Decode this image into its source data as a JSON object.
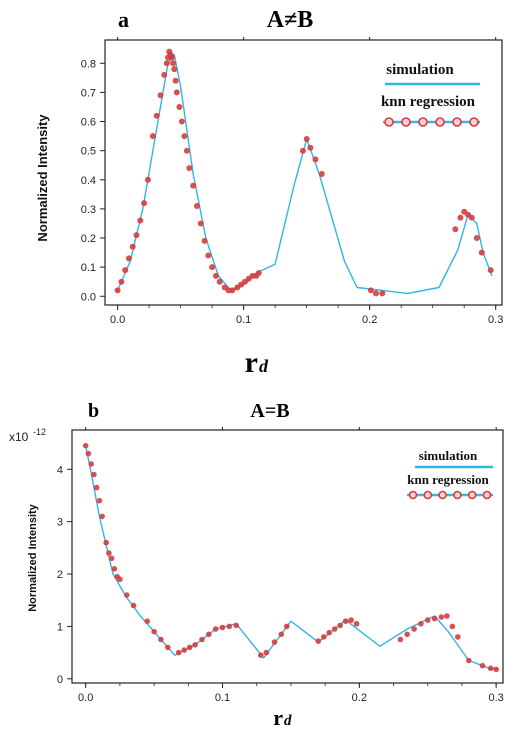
{
  "colors": {
    "simulation": "#33b5e5",
    "knn": "#d63c3c",
    "axis": "#222222"
  },
  "chart_data": [
    {
      "type": "line",
      "panel_label": "a",
      "title": "A≠B",
      "xlabel_main": "r",
      "xlabel_sub": "d",
      "ylabel": "Normalized Intensity",
      "y_multiplier": "",
      "xlim": [
        -0.01,
        0.305
      ],
      "ylim": [
        -0.03,
        0.88
      ],
      "xticks": [
        0.0,
        0.1,
        0.2,
        0.3
      ],
      "xtick_labels": [
        "0.0",
        "0.1",
        "0.2",
        "0.3"
      ],
      "yticks": [
        0.0,
        0.1,
        0.2,
        0.3,
        0.4,
        0.5,
        0.6,
        0.7,
        0.8
      ],
      "ytick_labels": [
        "0.0",
        "0.1",
        "0.2",
        "0.3",
        "0.4",
        "0.5",
        "0.6",
        "0.7",
        "0.8"
      ],
      "legend": {
        "position": "top-right",
        "entries": [
          "simulation",
          "knn regression"
        ]
      },
      "grid": false,
      "series": [
        {
          "name": "simulation",
          "style": "line",
          "x": [
            0.0,
            0.01,
            0.02,
            0.03,
            0.04,
            0.045,
            0.05,
            0.06,
            0.07,
            0.08,
            0.09,
            0.1,
            0.11,
            0.125,
            0.14,
            0.15,
            0.16,
            0.18,
            0.19,
            0.21,
            0.23,
            0.255,
            0.27,
            0.278,
            0.285,
            0.29,
            0.297
          ],
          "y": [
            0.02,
            0.12,
            0.3,
            0.55,
            0.8,
            0.83,
            0.72,
            0.42,
            0.2,
            0.07,
            0.02,
            0.04,
            0.08,
            0.11,
            0.38,
            0.54,
            0.42,
            0.12,
            0.03,
            0.02,
            0.01,
            0.03,
            0.16,
            0.28,
            0.25,
            0.15,
            0.07
          ]
        },
        {
          "name": "knn regression",
          "style": "markers",
          "x": [
            0.0,
            0.003,
            0.006,
            0.009,
            0.012,
            0.015,
            0.018,
            0.021,
            0.024,
            0.028,
            0.031,
            0.034,
            0.037,
            0.039,
            0.04,
            0.041,
            0.042,
            0.043,
            0.044,
            0.045,
            0.046,
            0.047,
            0.049,
            0.051,
            0.053,
            0.055,
            0.057,
            0.06,
            0.063,
            0.066,
            0.069,
            0.072,
            0.075,
            0.078,
            0.081,
            0.085,
            0.088,
            0.091,
            0.095,
            0.098,
            0.101,
            0.104,
            0.107,
            0.11,
            0.112,
            0.147,
            0.15,
            0.153,
            0.157,
            0.162,
            0.201,
            0.205,
            0.21,
            0.268,
            0.272,
            0.275,
            0.278,
            0.281,
            0.285,
            0.289,
            0.296
          ],
          "y": [
            0.02,
            0.05,
            0.09,
            0.13,
            0.17,
            0.21,
            0.26,
            0.32,
            0.4,
            0.55,
            0.62,
            0.69,
            0.76,
            0.8,
            0.82,
            0.84,
            0.83,
            0.82,
            0.8,
            0.78,
            0.74,
            0.7,
            0.65,
            0.6,
            0.55,
            0.5,
            0.44,
            0.38,
            0.31,
            0.25,
            0.19,
            0.14,
            0.1,
            0.07,
            0.05,
            0.03,
            0.02,
            0.02,
            0.03,
            0.04,
            0.05,
            0.06,
            0.07,
            0.07,
            0.08,
            0.5,
            0.54,
            0.51,
            0.47,
            0.42,
            0.02,
            0.01,
            0.01,
            0.23,
            0.27,
            0.29,
            0.28,
            0.27,
            0.2,
            0.15,
            0.09
          ]
        }
      ]
    },
    {
      "type": "line",
      "panel_label": "b",
      "title": "A=B",
      "xlabel_main": "r",
      "xlabel_sub": "d",
      "ylabel": "Normalized Intensity",
      "y_multiplier": "x10",
      "y_multiplier_exp": "-12",
      "xlim": [
        -0.01,
        0.305
      ],
      "ylim": [
        -0.08,
        4.75
      ],
      "xticks": [
        0.0,
        0.1,
        0.2,
        0.3
      ],
      "xtick_labels": [
        "0.0",
        "0.1",
        "0.2",
        "0.3"
      ],
      "yticks": [
        0,
        1,
        2,
        3,
        4
      ],
      "ytick_labels": [
        "0",
        "1",
        "2",
        "3",
        "4"
      ],
      "legend": {
        "position": "top-right",
        "entries": [
          "simulation",
          "knn regression"
        ]
      },
      "grid": false,
      "series": [
        {
          "name": "simulation",
          "style": "line",
          "x": [
            0.0,
            0.005,
            0.01,
            0.02,
            0.03,
            0.04,
            0.05,
            0.065,
            0.08,
            0.095,
            0.11,
            0.13,
            0.15,
            0.17,
            0.19,
            0.215,
            0.235,
            0.255,
            0.265,
            0.28,
            0.295,
            0.3
          ],
          "y": [
            4.45,
            3.8,
            3.1,
            2.0,
            1.55,
            1.2,
            0.9,
            0.45,
            0.65,
            0.95,
            1.05,
            0.4,
            1.1,
            0.7,
            1.12,
            0.62,
            0.95,
            1.2,
            0.9,
            0.35,
            0.2,
            0.18
          ],
          "line_x": [
            0.0,
            0.005,
            0.01,
            0.02,
            0.03,
            0.04,
            0.05,
            0.065,
            0.08,
            0.095,
            0.11,
            0.13,
            0.15,
            0.17,
            0.19,
            0.215,
            0.235,
            0.255,
            0.265,
            0.28,
            0.295,
            0.3
          ]
        },
        {
          "name": "knn regression",
          "style": "markers",
          "x": [
            0.0,
            0.002,
            0.004,
            0.006,
            0.008,
            0.01,
            0.012,
            0.015,
            0.017,
            0.019,
            0.021,
            0.023,
            0.025,
            0.03,
            0.035,
            0.045,
            0.05,
            0.055,
            0.06,
            0.068,
            0.072,
            0.076,
            0.08,
            0.085,
            0.09,
            0.095,
            0.1,
            0.105,
            0.11,
            0.128,
            0.132,
            0.138,
            0.143,
            0.147,
            0.17,
            0.174,
            0.178,
            0.182,
            0.186,
            0.19,
            0.194,
            0.198,
            0.23,
            0.235,
            0.24,
            0.245,
            0.25,
            0.255,
            0.26,
            0.264,
            0.268,
            0.272,
            0.28,
            0.29,
            0.296,
            0.3
          ],
          "y": [
            4.45,
            4.3,
            4.1,
            3.9,
            3.65,
            3.4,
            3.1,
            2.6,
            2.4,
            2.3,
            2.1,
            1.95,
            1.9,
            1.6,
            1.4,
            1.1,
            0.9,
            0.75,
            0.6,
            0.5,
            0.55,
            0.6,
            0.65,
            0.75,
            0.85,
            0.95,
            0.98,
            1.0,
            1.02,
            0.45,
            0.5,
            0.7,
            0.85,
            1.0,
            0.72,
            0.8,
            0.88,
            0.95,
            1.02,
            1.1,
            1.12,
            1.05,
            0.75,
            0.85,
            0.95,
            1.05,
            1.12,
            1.15,
            1.18,
            1.2,
            1.0,
            0.8,
            0.35,
            0.25,
            0.2,
            0.18
          ]
        }
      ]
    }
  ]
}
